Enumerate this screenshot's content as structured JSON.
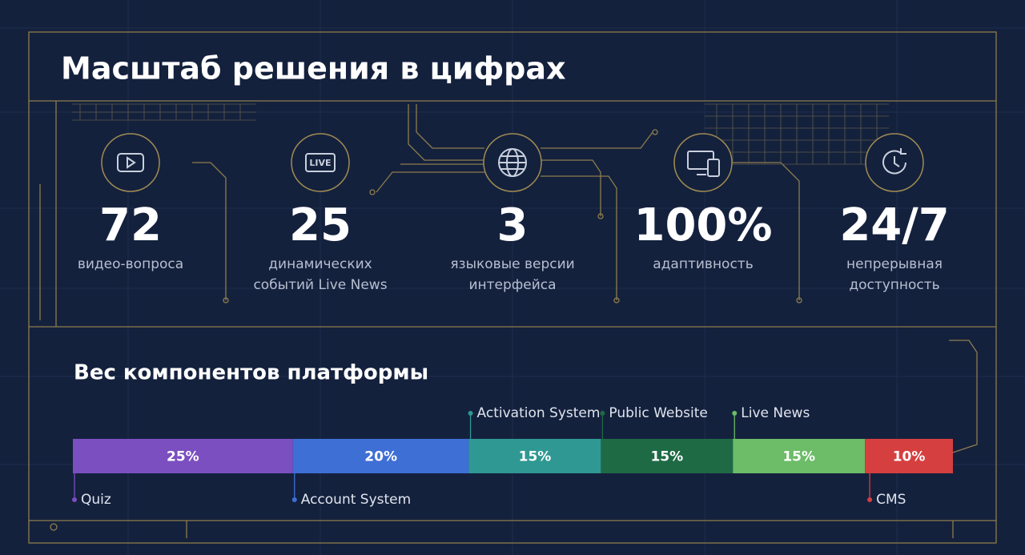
{
  "header": {
    "title": "Масштаб решения в цифрах"
  },
  "stats": [
    {
      "value": "72",
      "label": [
        "видео-вопроса"
      ]
    },
    {
      "value": "25",
      "label": [
        "динамических",
        "событий Live News"
      ]
    },
    {
      "value": "3",
      "label": [
        "языковые версии",
        "интерфейса"
      ]
    },
    {
      "value": "100%",
      "label": [
        "адаптивность"
      ]
    },
    {
      "value": "24/7",
      "label": [
        "непрерывная",
        "доступность"
      ]
    }
  ],
  "chart_data": {
    "type": "stacked-bar",
    "title": "Вес компонентов платформы",
    "series": [
      {
        "name": "Quiz",
        "color": "#7b4fc0",
        "values": [
          25
        ],
        "value_labels": [
          "25%"
        ]
      },
      {
        "name": "Account System",
        "color": "#3e6fd5",
        "values": [
          20
        ],
        "value_labels": [
          "20%"
        ]
      },
      {
        "name": "Activation System",
        "color": "#2f9893",
        "values": [
          15
        ],
        "value_labels": [
          "15%"
        ]
      },
      {
        "name": "Public Website",
        "color": "#1e6a45",
        "values": [
          15
        ],
        "value_labels": [
          "15%"
        ]
      },
      {
        "name": "Live News",
        "color": "#6cbc68",
        "values": [
          15
        ],
        "value_labels": [
          "15%"
        ]
      },
      {
        "name": "CMS",
        "color": "#d63f3f",
        "values": [
          10
        ],
        "value_labels": [
          "10%"
        ]
      }
    ]
  }
}
